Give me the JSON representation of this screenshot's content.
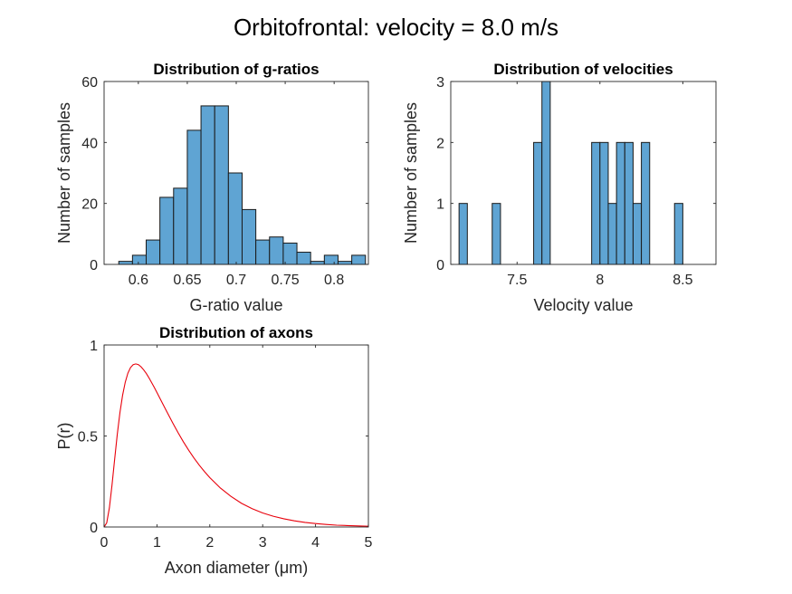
{
  "figure": {
    "suptitle": "Orbitofrontal: velocity = 8.0 m/s"
  },
  "chart_data": [
    {
      "type": "bar",
      "title": "Distribution of g-ratios",
      "xlabel": "G-ratio value",
      "ylabel": "Number of samples",
      "xlim": [
        0.565,
        0.835
      ],
      "ylim": [
        0,
        60
      ],
      "xticks": [
        0.6,
        0.65,
        0.7,
        0.75,
        0.8
      ],
      "xtick_labels": [
        "0.6",
        "0.65",
        "0.7",
        "0.75",
        "0.8"
      ],
      "yticks": [
        0,
        20,
        40,
        60
      ],
      "ytick_labels": [
        "0",
        "20",
        "40",
        "60"
      ],
      "bin_edges": [
        0.58,
        0.594,
        0.608,
        0.622,
        0.636,
        0.65,
        0.664,
        0.678,
        0.692,
        0.706,
        0.72,
        0.734,
        0.748,
        0.762,
        0.776,
        0.79,
        0.804,
        0.818,
        0.832
      ],
      "counts": [
        1,
        3,
        8,
        22,
        25,
        44,
        52,
        52,
        30,
        18,
        8,
        9,
        7,
        4,
        1,
        3,
        1,
        3
      ],
      "bar_color": "#5fa4d3"
    },
    {
      "type": "bar",
      "title": "Distribution of velocities",
      "xlabel": "Velocity value",
      "ylabel": "Number of samples",
      "xlim": [
        7.1,
        8.7
      ],
      "ylim": [
        0,
        3
      ],
      "xticks": [
        7.5,
        8,
        8.5
      ],
      "xtick_labels": [
        "7.5",
        "8",
        "8.5"
      ],
      "yticks": [
        0,
        1,
        2,
        3
      ],
      "ytick_labels": [
        "0",
        "1",
        "2",
        "3"
      ],
      "bin_edges": [
        7.15,
        7.2,
        7.25,
        7.3,
        7.35,
        7.4,
        7.45,
        7.5,
        7.55,
        7.6,
        7.65,
        7.7,
        7.75,
        7.8,
        7.85,
        7.9,
        7.95,
        8.0,
        8.05,
        8.1,
        8.15,
        8.2,
        8.25,
        8.3,
        8.35,
        8.4,
        8.45,
        8.5,
        8.55,
        8.6
      ],
      "counts": [
        1,
        0,
        0,
        0,
        1,
        0,
        0,
        0,
        0,
        2,
        3,
        0,
        0,
        0,
        0,
        0,
        2,
        2,
        1,
        2,
        2,
        1,
        2,
        0,
        0,
        0,
        1,
        0,
        0
      ],
      "bar_color": "#5fa4d3"
    },
    {
      "type": "line",
      "title": "Distribution of axons",
      "xlabel": "Axon diameter (μm)",
      "ylabel": "P(r)",
      "xlim": [
        0,
        5
      ],
      "ylim": [
        0,
        1
      ],
      "xticks": [
        0,
        1,
        2,
        3,
        4,
        5
      ],
      "xtick_labels": [
        "0",
        "1",
        "2",
        "3",
        "4",
        "5"
      ],
      "yticks": [
        0,
        0.5,
        1
      ],
      "ytick_labels": [
        "0",
        "0.5",
        "1"
      ],
      "series": [
        {
          "color": "#e8000b",
          "x": [
            0,
            0.05,
            0.1,
            0.15,
            0.2,
            0.25,
            0.3,
            0.35,
            0.4,
            0.45,
            0.5,
            0.55,
            0.6,
            0.65,
            0.7,
            0.75,
            0.8,
            0.85,
            0.9,
            0.95,
            1.0,
            1.1,
            1.2,
            1.3,
            1.4,
            1.5,
            1.6,
            1.7,
            1.8,
            1.9,
            2.0,
            2.2,
            2.4,
            2.6,
            2.8,
            3.0,
            3.2,
            3.4,
            3.6,
            3.8,
            4.0,
            4.2,
            4.4,
            4.6,
            4.8,
            5.0
          ],
          "y": [
            0,
            0.023,
            0.105,
            0.231,
            0.373,
            0.51,
            0.629,
            0.724,
            0.795,
            0.845,
            0.876,
            0.892,
            0.896,
            0.892,
            0.88,
            0.863,
            0.843,
            0.819,
            0.793,
            0.767,
            0.739,
            0.682,
            0.626,
            0.571,
            0.518,
            0.468,
            0.422,
            0.379,
            0.34,
            0.304,
            0.271,
            0.214,
            0.168,
            0.13,
            0.101,
            0.077,
            0.059,
            0.045,
            0.034,
            0.025,
            0.019,
            0.014,
            0.01,
            0.008,
            0.006,
            0.004
          ]
        }
      ]
    }
  ]
}
